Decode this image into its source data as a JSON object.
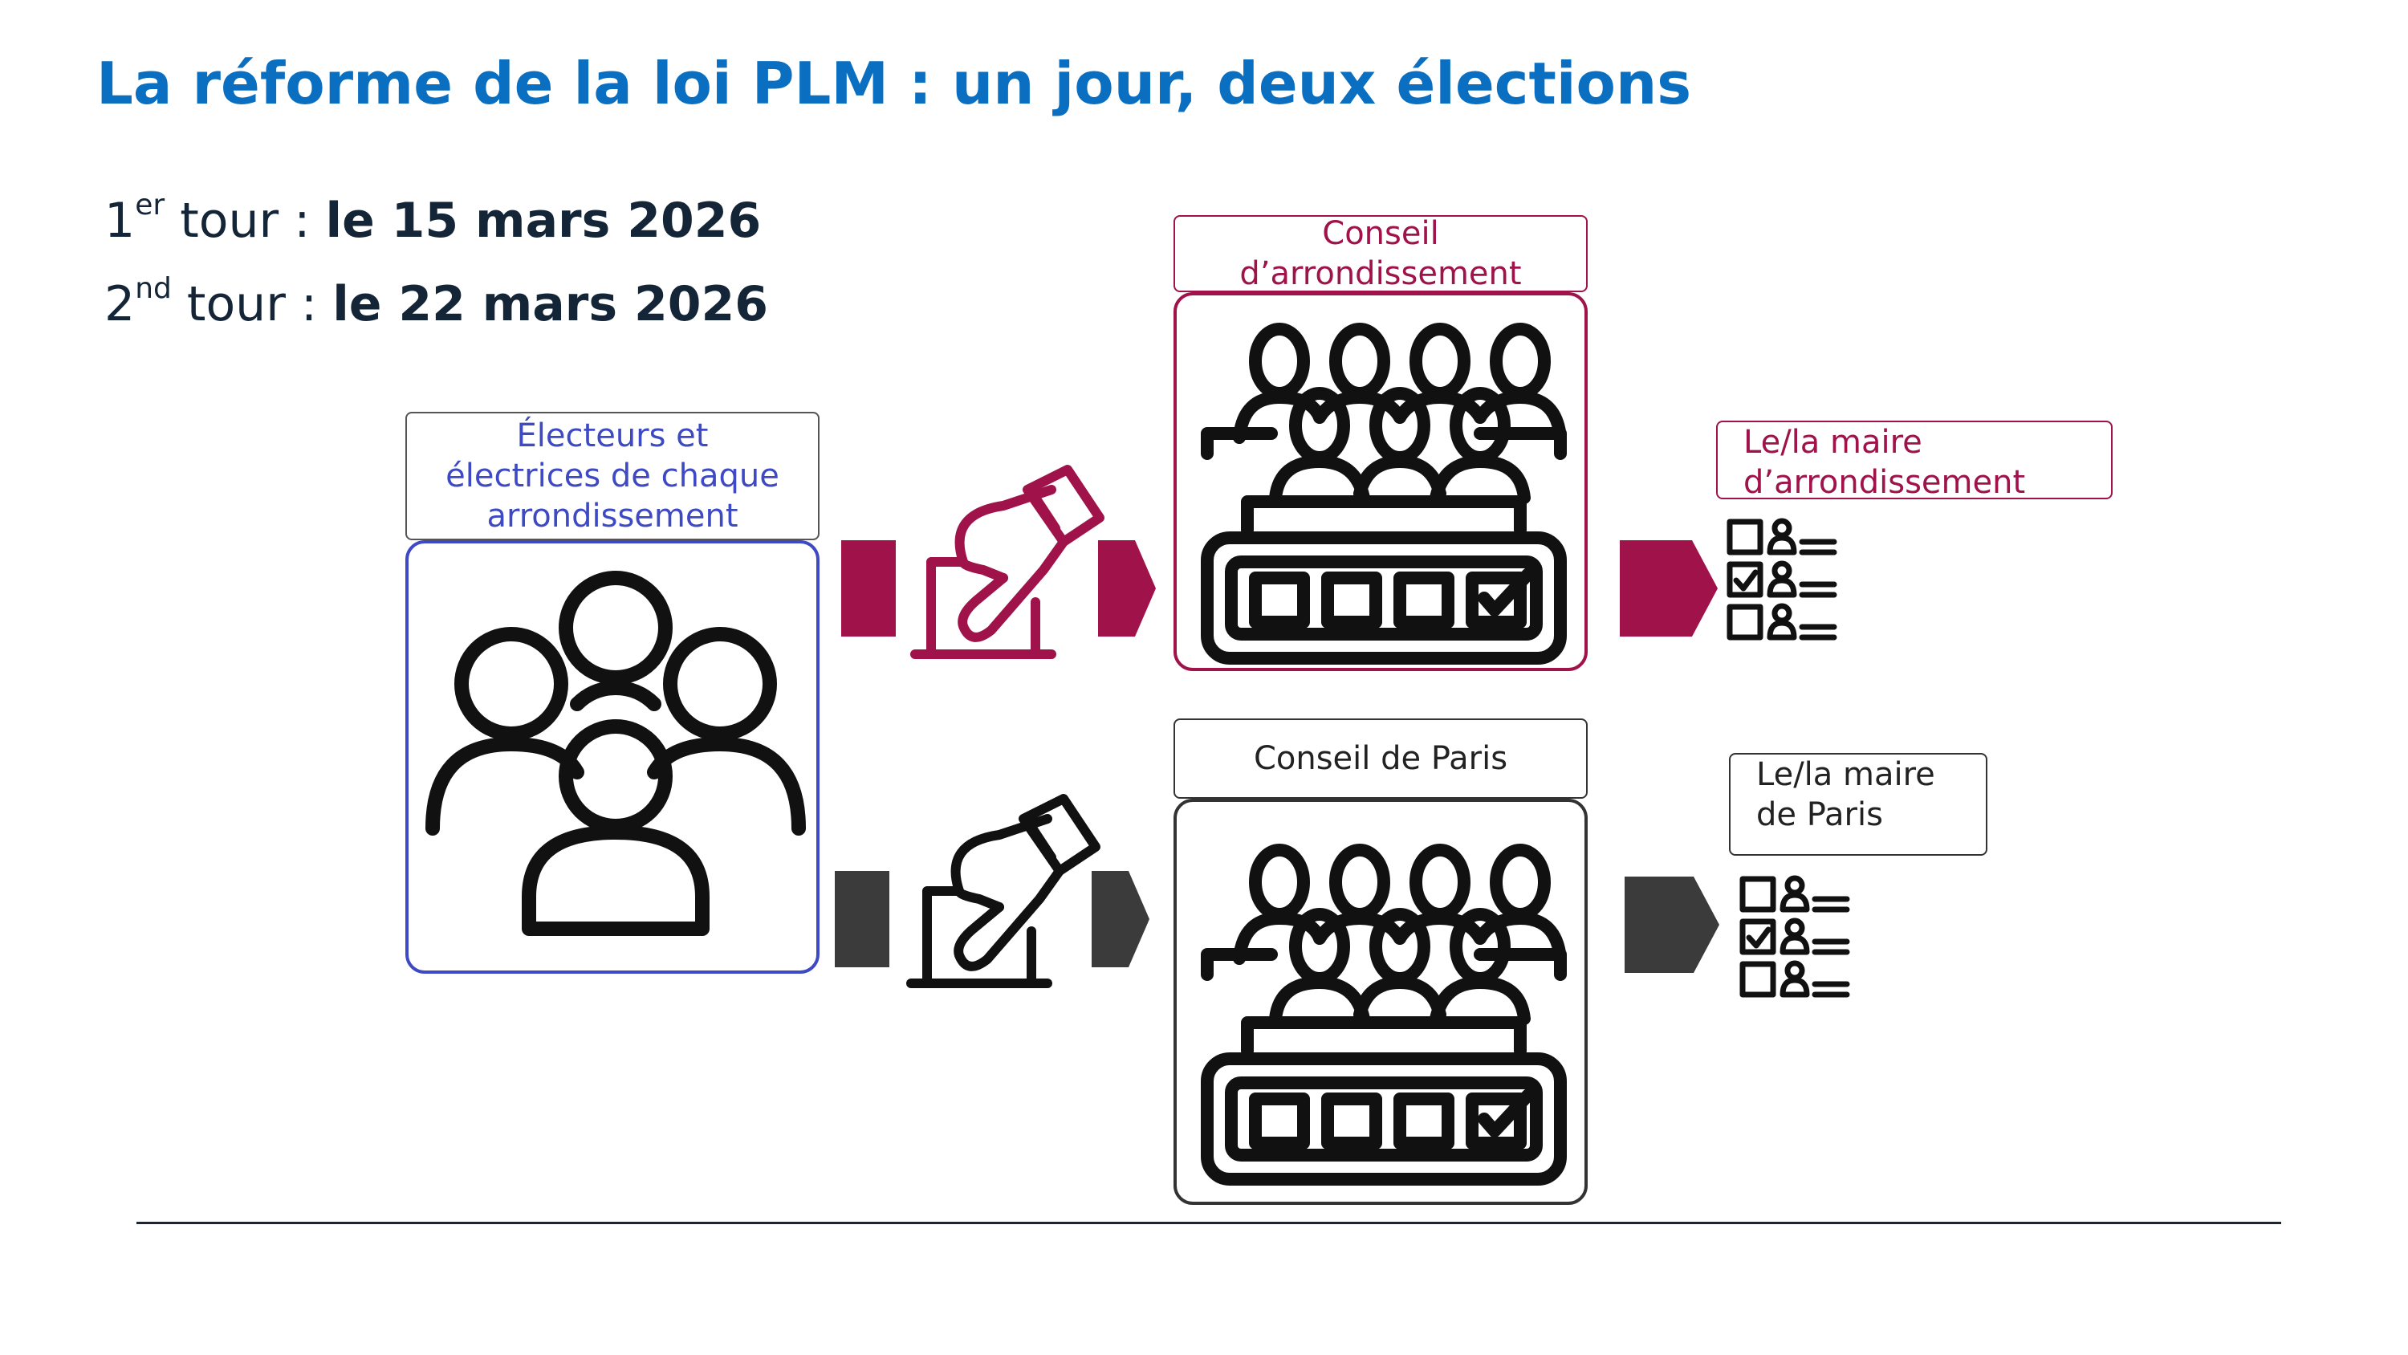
{
  "title": "La réforme de la loi PLM : un jour, deux élections",
  "rounds": [
    {
      "num": "1",
      "sup": "er",
      "word": " tour : ",
      "date": "le 15 mars 2026"
    },
    {
      "num": "2",
      "sup": "nd",
      "word": " tour : ",
      "date": "le 22 mars 2026"
    }
  ],
  "voters": {
    "line1": "Électeurs et",
    "line2": "électrices de chaque",
    "line3": "arrondissement",
    "icon": "group-of-people-icon"
  },
  "track_arrondissement": {
    "color": "#a0124a",
    "vote_icon": "ballot-box-icon",
    "council_line1": "Conseil",
    "council_line2": "d’arrondissement",
    "council_icon": "council-assembly-icon",
    "mayor_line1": "Le/la maire",
    "mayor_line2": "d’arrondissement",
    "mayor_icon": "candidate-checklist-icon"
  },
  "track_paris": {
    "color": "#3b3b3b",
    "vote_icon": "ballot-box-icon",
    "council": "Conseil de Paris",
    "council_icon": "council-assembly-icon",
    "mayor_line1": "Le/la maire",
    "mayor_line2": "de Paris",
    "mayor_icon": "candidate-checklist-icon"
  },
  "colors": {
    "title": "#0a6fc1",
    "voters": "#3e49c4",
    "arrondissement": "#a0124a",
    "paris": "#3b3b3b"
  }
}
